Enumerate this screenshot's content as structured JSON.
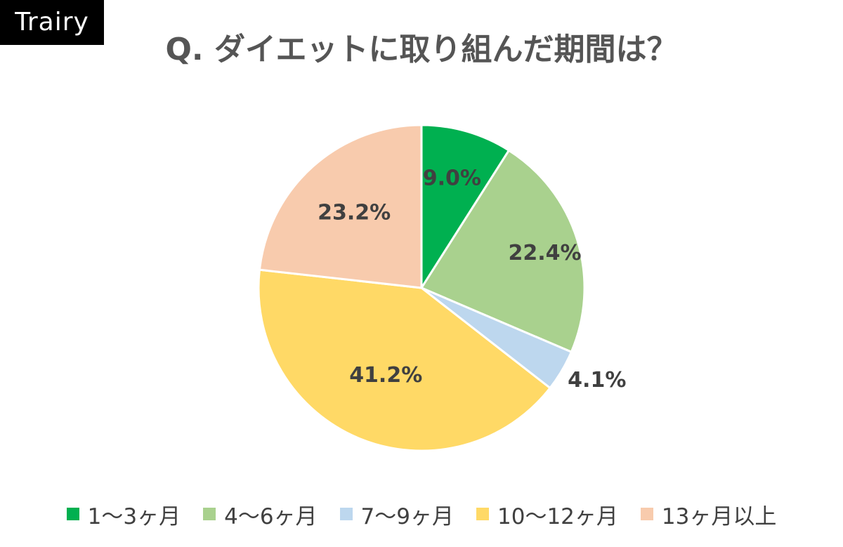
{
  "brand": {
    "name": "Trairy"
  },
  "chart_data": {
    "type": "pie",
    "title": "Q. ダイエットに取り組んだ期間は？",
    "legend_position": "bottom",
    "slices": [
      {
        "label": "1〜3ヶ月",
        "value": 9.0,
        "display": "9.0%",
        "color": "#00b050"
      },
      {
        "label": "4〜6ヶ月",
        "value": 22.4,
        "display": "22.4%",
        "color": "#a9d18e"
      },
      {
        "label": "7〜9ヶ月",
        "value": 4.1,
        "display": "4.1%",
        "color": "#bdd7ee"
      },
      {
        "label": "10〜12ヶ月",
        "value": 41.2,
        "display": "41.2%",
        "color": "#ffd966"
      },
      {
        "label": "13ヶ月以上",
        "value": 23.2,
        "display": "23.2%",
        "color": "#f8cbad"
      }
    ]
  }
}
